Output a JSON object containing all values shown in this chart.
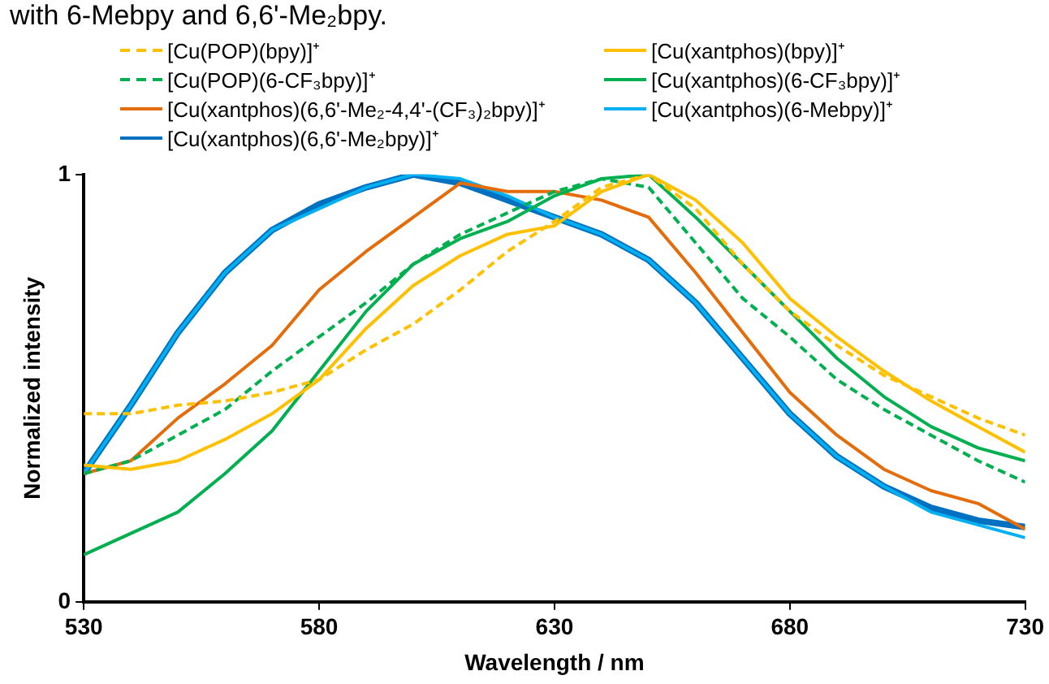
{
  "chart_data": {
    "type": "line",
    "annotations": [
      "with 6-Mebpy and 6,6'-Me₂bpy."
    ],
    "xlabel": "Wavelength / nm",
    "ylabel": "Normalized intensity",
    "xlim": [
      530,
      730
    ],
    "xticks": [
      530,
      580,
      630,
      680,
      730
    ],
    "ylim": [
      0,
      1
    ],
    "yticks": [
      0,
      1
    ],
    "grid": false,
    "legend": "top",
    "marker": "none",
    "x": [
      530,
      540,
      550,
      560,
      570,
      580,
      590,
      600,
      610,
      620,
      630,
      640,
      650,
      660,
      670,
      680,
      690,
      700,
      710,
      720,
      730
    ],
    "series": [
      {
        "name": "[Cu(POP)(bpy)]⁺",
        "color": "#ffc000",
        "line_style": "dashed",
        "values": [
          0.44,
          0.44,
          0.46,
          0.47,
          0.49,
          0.52,
          0.59,
          0.65,
          0.73,
          0.82,
          0.89,
          0.97,
          1.0,
          0.92,
          0.79,
          0.68,
          0.6,
          0.53,
          0.48,
          0.43,
          0.39
        ]
      },
      {
        "name": "[Cu(xantphos)(bpy)]⁺",
        "color": "#ffc000",
        "line_style": "solid",
        "values": [
          0.32,
          0.31,
          0.33,
          0.38,
          0.44,
          0.52,
          0.64,
          0.74,
          0.81,
          0.86,
          0.88,
          0.96,
          1.0,
          0.94,
          0.84,
          0.71,
          0.62,
          0.54,
          0.47,
          0.41,
          0.35
        ]
      },
      {
        "name": "[Cu(POP)(6-CF₃bpy)]⁺",
        "color": "#00b050",
        "line_style": "dashed",
        "values": [
          0.3,
          0.33,
          0.39,
          0.45,
          0.54,
          0.62,
          0.7,
          0.79,
          0.86,
          0.91,
          0.96,
          0.99,
          0.97,
          0.84,
          0.71,
          0.62,
          0.52,
          0.45,
          0.39,
          0.33,
          0.28
        ]
      },
      {
        "name": "[Cu(xantphos)(6-CF₃bpy)]⁺",
        "color": "#00b050",
        "line_style": "solid",
        "values": [
          0.11,
          0.16,
          0.21,
          0.3,
          0.4,
          0.54,
          0.68,
          0.79,
          0.85,
          0.89,
          0.95,
          0.99,
          1.0,
          0.9,
          0.79,
          0.68,
          0.57,
          0.48,
          0.41,
          0.36,
          0.33
        ]
      },
      {
        "name": "[Cu(xantphos)(6,6'-Me₂-4,4'-(CF₃)₂bpy)]⁺",
        "color": "#e46c0a",
        "line_style": "solid",
        "values": [
          0.3,
          0.33,
          0.43,
          0.51,
          0.6,
          0.73,
          0.82,
          0.9,
          0.98,
          0.96,
          0.96,
          0.94,
          0.9,
          0.77,
          0.63,
          0.49,
          0.39,
          0.31,
          0.26,
          0.23,
          0.17
        ]
      },
      {
        "name": "[Cu(xantphos)(6-Mebpy)]⁺",
        "color": "#00b0f0",
        "line_style": "solid",
        "values": [
          0.3,
          0.46,
          0.63,
          0.77,
          0.87,
          0.92,
          0.97,
          1.0,
          0.99,
          0.95,
          0.9,
          0.86,
          0.8,
          0.7,
          0.57,
          0.44,
          0.34,
          0.27,
          0.21,
          0.18,
          0.15
        ]
      },
      {
        "name": "[Cu(xantphos)(6,6'-Me₂bpy)]⁺",
        "color": "#0070c0",
        "line_style": "solid",
        "values": [
          0.3,
          0.46,
          0.63,
          0.77,
          0.87,
          0.93,
          0.97,
          1.0,
          0.98,
          0.94,
          0.9,
          0.86,
          0.8,
          0.7,
          0.57,
          0.44,
          0.34,
          0.27,
          0.22,
          0.19,
          0.175
        ]
      }
    ]
  }
}
